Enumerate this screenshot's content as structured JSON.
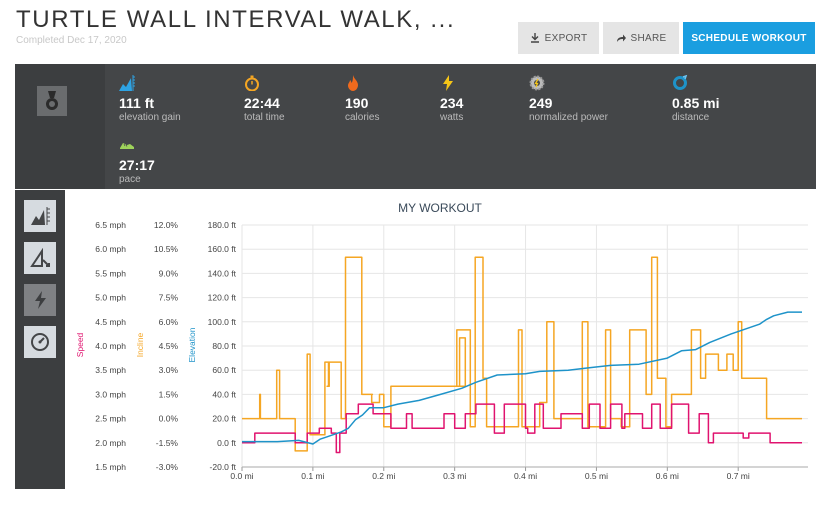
{
  "header": {
    "title": "TURTLE WALL INTERVAL WALK, ...",
    "subtitle": "Completed Dec 17, 2020"
  },
  "buttons": {
    "export": "EXPORT",
    "share": "SHARE",
    "schedule": "SCHEDULE WORKOUT"
  },
  "stats": [
    {
      "value": "111 ft",
      "label": "elevation gain",
      "icon": "elevation-icon"
    },
    {
      "value": "22:44",
      "label": "total time",
      "icon": "stopwatch-icon"
    },
    {
      "value": "190",
      "label": "calories",
      "icon": "flame-icon"
    },
    {
      "value": "234",
      "label": "watts",
      "icon": "bolt-icon"
    },
    {
      "value": "249",
      "label": "normalized power",
      "icon": "gear-icon"
    },
    {
      "value": "0.85 mi",
      "label": "distance",
      "icon": "ring-icon"
    },
    {
      "value": "27:17",
      "label": "pace",
      "icon": "shoe-icon"
    }
  ],
  "colors": {
    "speed": "#e0136f",
    "incline": "#f5a623",
    "elevation": "#1e93c9"
  },
  "chart_data": {
    "type": "line",
    "title": "MY WORKOUT",
    "xlabel": "",
    "x_ticks": [
      "0.0 mi",
      "0.1 mi",
      "0.2 mi",
      "0.3 mi",
      "0.4 mi",
      "0.5 mi",
      "0.6 mi",
      "0.7 mi"
    ],
    "xlim": [
      0,
      0.79
    ],
    "axes": [
      {
        "name": "Speed",
        "ticks": [
          "1.5 mph",
          "2.0 mph",
          "2.5 mph",
          "3.0 mph",
          "3.5 mph",
          "4.0 mph",
          "4.5 mph",
          "5.0 mph",
          "5.5 mph",
          "6.0 mph",
          "6.5 mph"
        ],
        "ylim": [
          1.5,
          6.5
        ]
      },
      {
        "name": "Incline",
        "ticks": [
          "-3.0%",
          "-1.5%",
          "0.0%",
          "1.5%",
          "3.0%",
          "4.5%",
          "6.0%",
          "7.5%",
          "9.0%",
          "10.5%",
          "12.0%"
        ],
        "ylim": [
          -3.0,
          12.0
        ]
      },
      {
        "name": "Elevation",
        "ticks": [
          "-20.0 ft",
          "0.0 ft",
          "20.0 ft",
          "40.0 ft",
          "60.0 ft",
          "80.0 ft",
          "100.0 ft",
          "120.0 ft",
          "140.0 ft",
          "160.0 ft",
          "180.0 ft"
        ],
        "ylim": [
          -20,
          180
        ]
      }
    ],
    "series": [
      {
        "name": "Incline",
        "unit": "%",
        "points": [
          [
            0.0,
            0.0
          ],
          [
            0.025,
            0.0
          ],
          [
            0.025,
            1.5
          ],
          [
            0.026,
            1.5
          ],
          [
            0.026,
            0.0
          ],
          [
            0.03,
            0.0
          ],
          [
            0.049,
            0.0
          ],
          [
            0.049,
            3.0
          ],
          [
            0.053,
            3.0
          ],
          [
            0.053,
            0.0
          ],
          [
            0.06,
            0.0
          ],
          [
            0.075,
            0.0
          ],
          [
            0.075,
            -2.0
          ],
          [
            0.092,
            -2.0
          ],
          [
            0.092,
            4.0
          ],
          [
            0.096,
            4.0
          ],
          [
            0.096,
            -1.0
          ],
          [
            0.117,
            -1.0
          ],
          [
            0.117,
            3.5
          ],
          [
            0.12,
            3.5
          ],
          [
            0.12,
            3.5
          ],
          [
            0.123,
            3.5
          ],
          [
            0.123,
            2.0
          ],
          [
            0.12,
            2.0
          ],
          [
            0.122,
            2.0
          ],
          [
            0.122,
            3.5
          ],
          [
            0.14,
            3.5
          ],
          [
            0.14,
            0.0
          ],
          [
            0.146,
            0.0
          ],
          [
            0.146,
            10.0
          ],
          [
            0.169,
            10.0
          ],
          [
            0.169,
            1.5
          ],
          [
            0.184,
            1.5
          ],
          [
            0.184,
            1.5
          ],
          [
            0.183,
            1.5
          ],
          [
            0.183,
            1.0
          ],
          [
            0.194,
            1.0
          ],
          [
            0.194,
            1.5
          ],
          [
            0.2,
            1.5
          ],
          [
            0.2,
            -0.5
          ],
          [
            0.21,
            -0.5
          ],
          [
            0.21,
            2.0
          ],
          [
            0.3,
            2.0
          ],
          [
            0.3,
            2.0
          ],
          [
            0.307,
            2.0
          ],
          [
            0.307,
            5.0
          ],
          [
            0.315,
            5.0
          ],
          [
            0.315,
            2.0
          ],
          [
            0.303,
            2.0
          ],
          [
            0.303,
            5.5
          ],
          [
            0.322,
            5.5
          ],
          [
            0.322,
            -0.5
          ],
          [
            0.329,
            -0.5
          ],
          [
            0.329,
            10.0
          ],
          [
            0.34,
            10.0
          ],
          [
            0.34,
            2.5
          ],
          [
            0.345,
            2.5
          ],
          [
            0.345,
            -0.5
          ],
          [
            0.39,
            -0.5
          ],
          [
            0.39,
            5.5
          ],
          [
            0.395,
            5.5
          ],
          [
            0.395,
            -0.5
          ],
          [
            0.42,
            -0.5
          ],
          [
            0.42,
            1.0
          ],
          [
            0.43,
            1.0
          ],
          [
            0.43,
            6.0
          ],
          [
            0.44,
            6.0
          ],
          [
            0.44,
            0.0
          ],
          [
            0.48,
            0.0
          ],
          [
            0.48,
            6.0
          ],
          [
            0.488,
            6.0
          ],
          [
            0.488,
            -0.5
          ],
          [
            0.513,
            -0.5
          ],
          [
            0.513,
            5.5
          ],
          [
            0.52,
            5.5
          ],
          [
            0.52,
            0.0
          ],
          [
            0.535,
            0.0
          ],
          [
            0.535,
            -0.5
          ],
          [
            0.547,
            -0.5
          ],
          [
            0.547,
            5.5
          ],
          [
            0.57,
            5.5
          ],
          [
            0.57,
            1.5
          ],
          [
            0.578,
            1.5
          ],
          [
            0.578,
            10.0
          ],
          [
            0.586,
            10.0
          ],
          [
            0.586,
            2.5
          ],
          [
            0.598,
            2.5
          ],
          [
            0.598,
            -0.5
          ],
          [
            0.606,
            -0.5
          ],
          [
            0.606,
            1.5
          ],
          [
            0.634,
            1.5
          ],
          [
            0.634,
            5.5
          ],
          [
            0.647,
            5.5
          ],
          [
            0.647,
            2.5
          ],
          [
            0.654,
            2.5
          ],
          [
            0.654,
            4.0
          ],
          [
            0.672,
            4.0
          ],
          [
            0.672,
            3.0
          ],
          [
            0.684,
            3.0
          ],
          [
            0.684,
            4.0
          ],
          [
            0.693,
            4.0
          ],
          [
            0.693,
            3.0
          ],
          [
            0.7,
            3.0
          ],
          [
            0.7,
            6.0
          ],
          [
            0.705,
            6.0
          ],
          [
            0.705,
            2.5
          ],
          [
            0.74,
            2.5
          ],
          [
            0.74,
            0.0
          ],
          [
            0.79,
            0.0
          ]
        ]
      },
      {
        "name": "Speed",
        "unit": "mph",
        "points": [
          [
            0.0,
            2.0
          ],
          [
            0.018,
            2.0
          ],
          [
            0.018,
            2.2
          ],
          [
            0.075,
            2.2
          ],
          [
            0.075,
            2.0
          ],
          [
            0.092,
            2.0
          ],
          [
            0.092,
            2.2
          ],
          [
            0.109,
            2.2
          ],
          [
            0.109,
            2.3
          ],
          [
            0.126,
            2.3
          ],
          [
            0.126,
            2.2
          ],
          [
            0.133,
            2.2
          ],
          [
            0.133,
            1.8
          ],
          [
            0.138,
            1.8
          ],
          [
            0.138,
            2.2
          ],
          [
            0.147,
            2.2
          ],
          [
            0.147,
            2.6
          ],
          [
            0.164,
            2.6
          ],
          [
            0.164,
            2.8
          ],
          [
            0.185,
            2.8
          ],
          [
            0.185,
            2.6
          ],
          [
            0.21,
            2.6
          ],
          [
            0.21,
            2.3
          ],
          [
            0.224,
            2.3
          ],
          [
            0.224,
            2.3
          ],
          [
            0.232,
            2.3
          ],
          [
            0.232,
            2.6
          ],
          [
            0.24,
            2.6
          ],
          [
            0.24,
            2.3
          ],
          [
            0.285,
            2.3
          ],
          [
            0.285,
            2.6
          ],
          [
            0.3,
            2.6
          ],
          [
            0.3,
            2.3
          ],
          [
            0.315,
            2.3
          ],
          [
            0.315,
            2.6
          ],
          [
            0.33,
            2.6
          ],
          [
            0.33,
            2.8
          ],
          [
            0.356,
            2.8
          ],
          [
            0.356,
            2.2
          ],
          [
            0.37,
            2.2
          ],
          [
            0.37,
            2.8
          ],
          [
            0.4,
            2.8
          ],
          [
            0.4,
            2.3
          ],
          [
            0.403,
            2.3
          ],
          [
            0.403,
            2.2
          ],
          [
            0.413,
            2.2
          ],
          [
            0.413,
            2.8
          ],
          [
            0.425,
            2.8
          ],
          [
            0.425,
            2.3
          ],
          [
            0.45,
            2.3
          ],
          [
            0.45,
            2.6
          ],
          [
            0.48,
            2.6
          ],
          [
            0.48,
            2.3
          ],
          [
            0.49,
            2.3
          ],
          [
            0.49,
            2.8
          ],
          [
            0.505,
            2.8
          ],
          [
            0.505,
            2.3
          ],
          [
            0.52,
            2.3
          ],
          [
            0.52,
            2.8
          ],
          [
            0.536,
            2.8
          ],
          [
            0.536,
            2.3
          ],
          [
            0.54,
            2.3
          ],
          [
            0.54,
            2.6
          ],
          [
            0.565,
            2.6
          ],
          [
            0.565,
            2.3
          ],
          [
            0.578,
            2.3
          ],
          [
            0.578,
            2.8
          ],
          [
            0.59,
            2.8
          ],
          [
            0.59,
            2.3
          ],
          [
            0.606,
            2.3
          ],
          [
            0.606,
            2.8
          ],
          [
            0.63,
            2.8
          ],
          [
            0.63,
            2.2
          ],
          [
            0.645,
            2.2
          ],
          [
            0.645,
            2.6
          ],
          [
            0.658,
            2.6
          ],
          [
            0.658,
            2.0
          ],
          [
            0.665,
            2.0
          ],
          [
            0.665,
            2.2
          ],
          [
            0.707,
            2.2
          ],
          [
            0.707,
            2.1
          ],
          [
            0.715,
            2.1
          ],
          [
            0.715,
            2.2
          ],
          [
            0.745,
            2.2
          ],
          [
            0.745,
            2.0
          ],
          [
            0.79,
            2.0
          ]
        ]
      },
      {
        "name": "Elevation",
        "unit": "ft",
        "points": [
          [
            0.0,
            1.0
          ],
          [
            0.05,
            1.0
          ],
          [
            0.08,
            2.0
          ],
          [
            0.1,
            -1.0
          ],
          [
            0.11,
            3.0
          ],
          [
            0.12,
            5.0
          ],
          [
            0.14,
            9.0
          ],
          [
            0.15,
            12.0
          ],
          [
            0.16,
            19.0
          ],
          [
            0.17,
            23.0
          ],
          [
            0.18,
            29.0
          ],
          [
            0.2,
            29.0
          ],
          [
            0.22,
            32.0
          ],
          [
            0.25,
            35.0
          ],
          [
            0.28,
            40.0
          ],
          [
            0.31,
            45.0
          ],
          [
            0.33,
            50.0
          ],
          [
            0.36,
            56.0
          ],
          [
            0.4,
            57.0
          ],
          [
            0.42,
            59.0
          ],
          [
            0.46,
            60.0
          ],
          [
            0.49,
            62.0
          ],
          [
            0.52,
            64.0
          ],
          [
            0.56,
            65.0
          ],
          [
            0.6,
            70.0
          ],
          [
            0.62,
            76.0
          ],
          [
            0.64,
            77.0
          ],
          [
            0.66,
            83.0
          ],
          [
            0.69,
            90.0
          ],
          [
            0.71,
            94.0
          ],
          [
            0.73,
            98.0
          ],
          [
            0.74,
            102.0
          ],
          [
            0.75,
            105.0
          ],
          [
            0.77,
            108.0
          ],
          [
            0.79,
            108.0
          ]
        ]
      }
    ]
  }
}
